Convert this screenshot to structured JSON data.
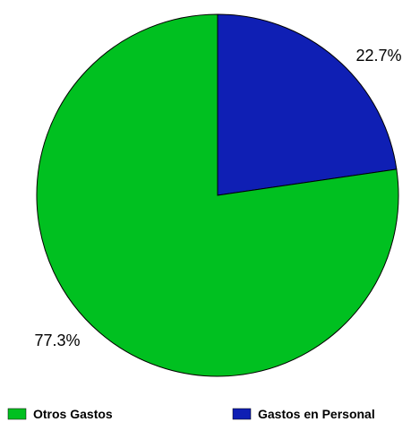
{
  "chart_data": {
    "type": "pie",
    "title": "",
    "slices": [
      {
        "label": "Gastos en Personal",
        "value": 22.7,
        "value_label": "22.7%",
        "color": "#0f1fb4"
      },
      {
        "label": "Otros Gastos",
        "value": 77.3,
        "value_label": "77.3%",
        "color": "#00c020"
      }
    ],
    "start_angle_deg": 0,
    "direction": "clockwise",
    "outline_color": "#000000",
    "legend": {
      "position": "bottom",
      "order": [
        "Otros Gastos",
        "Gastos en Personal"
      ]
    }
  }
}
